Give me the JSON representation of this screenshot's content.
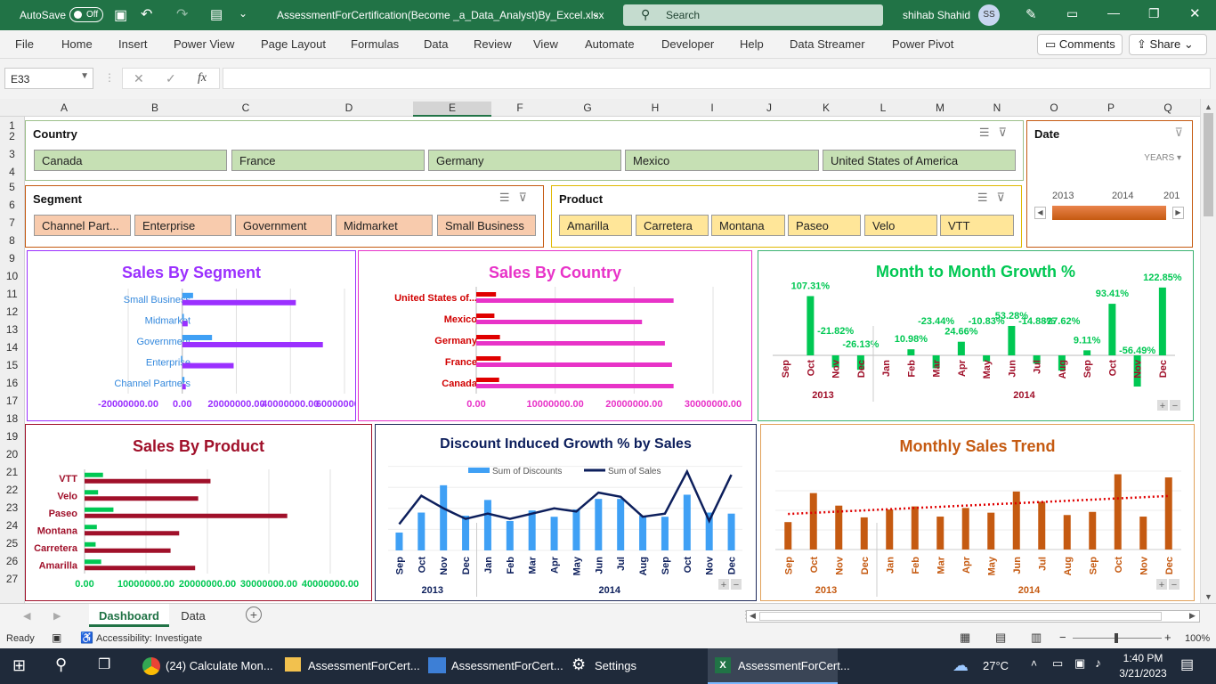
{
  "titlebar": {
    "autosave_label": "AutoSave",
    "autosave_state": "Off",
    "filename": "AssessmentForCertification(Become _a_Data_Analyst)By_Excel.xlsx",
    "search_placeholder": "Search",
    "user_name": "shihab Shahid",
    "user_initials": "SS"
  },
  "ribbon": {
    "tabs": [
      "File",
      "Home",
      "Insert",
      "Power View",
      "Page Layout",
      "Formulas",
      "Data",
      "Review",
      "View",
      "Automate",
      "Developer",
      "Help",
      "Data Streamer",
      "Power Pivot"
    ],
    "comments_label": "Comments",
    "share_label": "Share"
  },
  "formula_bar": {
    "name_box": "E33",
    "fx": "fx",
    "formula": ""
  },
  "columns": [
    "A",
    "B",
    "C",
    "D",
    "E",
    "F",
    "G",
    "H",
    "I",
    "J",
    "K",
    "L",
    "M",
    "N",
    "O",
    "P",
    "Q"
  ],
  "rows": [
    "1",
    "2",
    "3",
    "4",
    "5",
    "6",
    "7",
    "8",
    "9",
    "10",
    "11",
    "12",
    "13",
    "14",
    "15",
    "16",
    "17",
    "18",
    "19",
    "20",
    "21",
    "22",
    "23",
    "24",
    "25",
    "26",
    "27"
  ],
  "slicers": {
    "country": {
      "title": "Country",
      "items": [
        "Canada",
        "France",
        "Germany",
        "Mexico",
        "United States of America"
      ]
    },
    "segment": {
      "title": "Segment",
      "items": [
        "Channel Part...",
        "Enterprise",
        "Government",
        "Midmarket",
        "Small Business"
      ]
    },
    "product": {
      "title": "Product",
      "items": [
        "Amarilla",
        "Carretera",
        "Montana",
        "Paseo",
        "Velo",
        "VTT"
      ]
    },
    "date": {
      "title": "Date",
      "level": "YEARS",
      "years": [
        "2013",
        "2014",
        "201"
      ]
    }
  },
  "colors": {
    "excel_green": "#217346",
    "segment": "#9b30ff",
    "country": "#e833c8",
    "growth": "#00c853",
    "product": "#a0102a",
    "discount": "#3fa0f5",
    "trend": "#c55a11"
  },
  "charts": {
    "segment": {
      "title": "Sales By Segment"
    },
    "country": {
      "title": "Sales By Country"
    },
    "growth": {
      "title": "Month to Month Growth %"
    },
    "product": {
      "title": "Sales By Product"
    },
    "discount": {
      "title": "Discount Induced Growth % by Sales"
    },
    "trend": {
      "title": "Monthly Sales Trend"
    }
  },
  "chart_data": [
    {
      "type": "bar",
      "orientation": "horizontal",
      "title": "Sales By Segment",
      "categories": [
        "Small Business",
        "Midmarket",
        "Government",
        "Enterprise",
        "Channel Partners"
      ],
      "series": [
        {
          "values": [
            4000000,
            600000,
            11000000,
            -500000,
            800000
          ]
        },
        {
          "values": [
            42000000,
            2000000,
            52000000,
            19000000,
            1300000
          ]
        }
      ],
      "xticks": [
        "-20000000.00",
        "0.00",
        "20000000.00",
        "40000000.00",
        "60000000.00"
      ],
      "xlim": [
        -20000000,
        60000000
      ]
    },
    {
      "type": "bar",
      "orientation": "horizontal",
      "title": "Sales By Country",
      "categories": [
        "United States of...",
        "Mexico",
        "Germany",
        "France",
        "Canada"
      ],
      "series": [
        {
          "values": [
            2500000,
            2300000,
            3000000,
            3100000,
            2900000
          ]
        },
        {
          "values": [
            25000000,
            21000000,
            23900000,
            24800000,
            25000000
          ]
        }
      ],
      "xticks": [
        "0.00",
        "10000000.00",
        "20000000.00",
        "30000000.00"
      ],
      "xlim": [
        0,
        30000000
      ]
    },
    {
      "type": "bar",
      "title": "Month to Month Growth %",
      "categories": [
        "Sep",
        "Oct",
        "Nov",
        "Dec",
        "Jan",
        "Feb",
        "Mar",
        "Apr",
        "May",
        "Jun",
        "Jul",
        "Aug",
        "Sep",
        "Oct",
        "Nov",
        "Dec"
      ],
      "groups": [
        {
          "label": "2013",
          "span": 4
        },
        {
          "label": "2014",
          "span": 12
        }
      ],
      "values": [
        null,
        107.31,
        -21.82,
        -26.13,
        null,
        10.98,
        -23.44,
        24.66,
        -10.83,
        53.28,
        -14.88,
        -27.62,
        9.11,
        93.41,
        -56.49,
        122.85
      ],
      "data_labels": [
        "",
        "107.31%",
        "-21.82%",
        "-26.13%",
        "",
        "10.98%",
        "-23.44%",
        "24.66%",
        "-10.83%",
        "53.28%",
        "-14.88%",
        "-27.62%",
        "9.11%",
        "93.41%",
        "-56.49%",
        "122.85%"
      ]
    },
    {
      "type": "bar",
      "orientation": "horizontal",
      "title": "Sales By Product",
      "categories": [
        "VTT",
        "Velo",
        "Paseo",
        "Montana",
        "Carretera",
        "Amarilla"
      ],
      "series": [
        {
          "values": [
            3000000,
            2200000,
            4700000,
            2000000,
            1800000,
            2700000
          ]
        },
        {
          "values": [
            20500000,
            18500000,
            33000000,
            15400000,
            14000000,
            18000000
          ]
        }
      ],
      "xticks": [
        "0.00",
        "10000000.00",
        "20000000.00",
        "30000000.00",
        "40000000.00"
      ],
      "xlim": [
        0,
        40000000
      ]
    },
    {
      "type": "bar+line",
      "title": "Discount Induced Growth % by Sales",
      "categories": [
        "Sep",
        "Oct",
        "Nov",
        "Dec",
        "Jan",
        "Feb",
        "Mar",
        "Apr",
        "May",
        "Jun",
        "Jul",
        "Aug",
        "Sep",
        "Oct",
        "Nov",
        "Dec"
      ],
      "groups": [
        {
          "label": "2013",
          "span": 4
        },
        {
          "label": "2014",
          "span": 12
        }
      ],
      "series": [
        {
          "name": "Sum of Discounts",
          "type": "bar",
          "values": [
            17,
            36,
            62,
            33,
            48,
            28,
            38,
            32,
            39,
            49,
            49,
            33,
            32,
            53,
            36,
            35
          ]
        },
        {
          "name": "Sum of  Sales",
          "type": "line",
          "values": [
            25,
            52,
            40,
            30,
            35,
            30,
            35,
            40,
            37,
            55,
            51,
            32,
            35,
            75,
            28,
            72
          ]
        }
      ],
      "ylim": [
        0,
        80
      ]
    },
    {
      "type": "bar",
      "title": "Monthly Sales Trend",
      "categories": [
        "Sep",
        "Oct",
        "Nov",
        "Dec",
        "Jan",
        "Feb",
        "Mar",
        "Apr",
        "May",
        "Jun",
        "Jul",
        "Aug",
        "Sep",
        "Oct",
        "Nov",
        "Dec"
      ],
      "groups": [
        {
          "label": "2013",
          "span": 4
        },
        {
          "label": "2014",
          "span": 12
        }
      ],
      "values": [
        35,
        72,
        56,
        41,
        51,
        55,
        42,
        53,
        47,
        74,
        61,
        44,
        48,
        96,
        42,
        92
      ],
      "trendline": "linear",
      "ylim": [
        0,
        100
      ]
    }
  ],
  "sheet_tabs": [
    "Dashboard",
    "Data"
  ],
  "status": {
    "ready": "Ready",
    "accessibility": "Accessibility: Investigate",
    "zoom": "100%"
  },
  "taskbar": {
    "apps": [
      "(24) Calculate Mon...",
      "AssessmentForCert...",
      "AssessmentForCert...",
      "Settings",
      "AssessmentForCert..."
    ],
    "weather": "27°C",
    "time": "1:40 PM",
    "date": "3/21/2023"
  }
}
